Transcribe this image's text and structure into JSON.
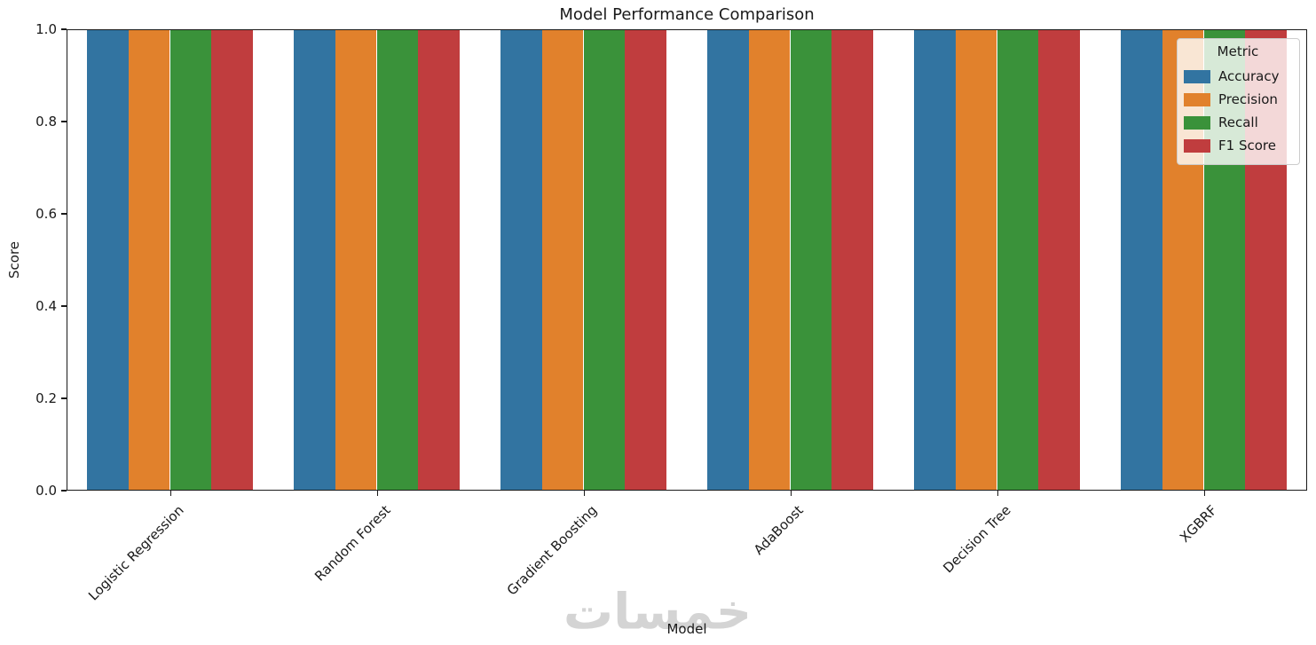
{
  "watermark_text": "خمسات",
  "chart_data": {
    "type": "bar",
    "title": "Model Performance Comparison",
    "xlabel": "Model",
    "ylabel": "Score",
    "ylim": [
      0.0,
      1.0
    ],
    "ytick_labels": [
      "0.0",
      "0.2",
      "0.4",
      "0.6",
      "0.8",
      "1.0"
    ],
    "ytick_values": [
      0.0,
      0.2,
      0.4,
      0.6,
      0.8,
      1.0
    ],
    "grid": false,
    "categories": [
      "Logistic Regression",
      "Random Forest",
      "Gradient Boosting",
      "AdaBoost",
      "Decision Tree",
      "XGBRF"
    ],
    "series": [
      {
        "name": "Accuracy",
        "color": "#3274a1",
        "values": [
          1.0,
          1.0,
          1.0,
          1.0,
          1.0,
          1.0
        ]
      },
      {
        "name": "Precision",
        "color": "#e1812c",
        "values": [
          1.0,
          1.0,
          1.0,
          1.0,
          1.0,
          1.0
        ]
      },
      {
        "name": "Recall",
        "color": "#3a923a",
        "values": [
          1.0,
          1.0,
          1.0,
          1.0,
          1.0,
          1.0
        ]
      },
      {
        "name": "F1 Score",
        "color": "#c03d3e",
        "values": [
          1.0,
          1.0,
          1.0,
          1.0,
          1.0,
          1.0
        ]
      }
    ],
    "legend": {
      "title": "Metric",
      "position": "upper right"
    }
  }
}
